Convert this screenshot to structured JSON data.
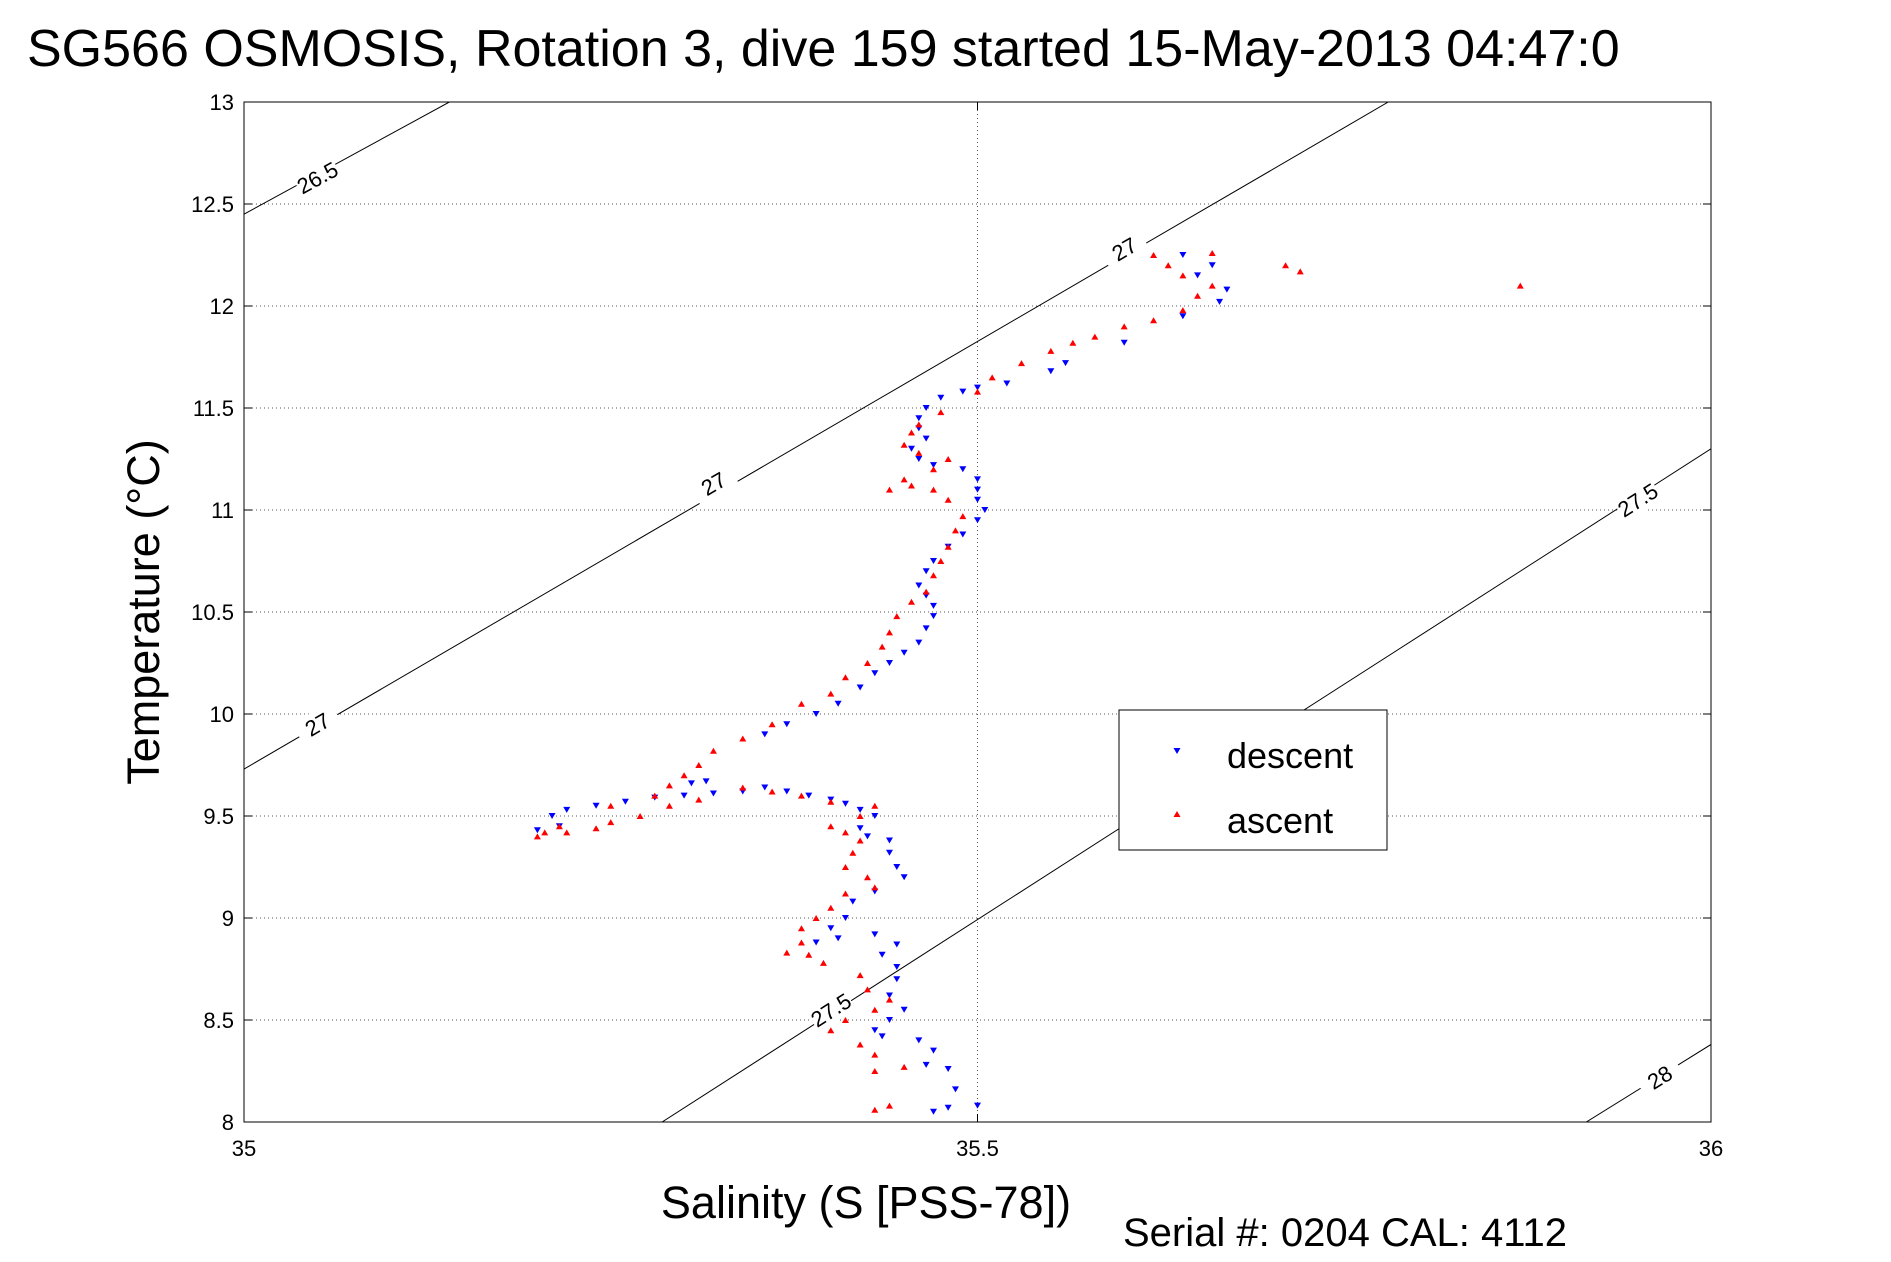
{
  "chart_data": {
    "type": "scatter",
    "title": "SG566 OSMOSIS, Rotation 3, dive 159 started 15-May-2013 04:47:0",
    "xlabel": "Salinity (S [PSS-78])",
    "ylabel": "Temperature (°C)",
    "xlim": [
      35,
      36
    ],
    "ylim": [
      8,
      13
    ],
    "x_ticks": [
      "35",
      "35.5",
      "36"
    ],
    "x_tick_values": [
      35,
      35.5,
      36
    ],
    "y_ticks": [
      "8",
      "8.5",
      "9",
      "9.5",
      "10",
      "10.5",
      "11",
      "11.5",
      "12",
      "12.5",
      "13"
    ],
    "y_tick_values": [
      8,
      8.5,
      9,
      9.5,
      10,
      10.5,
      11,
      11.5,
      12,
      12.5,
      13
    ],
    "grid": true,
    "legend_placement": "center-right",
    "footer": "Serial #: 0204  CAL: 4112",
    "density_contours": [
      {
        "label": "26.5",
        "points": [
          [
            35,
            12.45
          ],
          [
            35.14,
            13.0
          ]
        ],
        "label_positions": [
          [
            35.05,
            12.63
          ]
        ]
      },
      {
        "label": "27",
        "points": [
          [
            35,
            9.73
          ],
          [
            35.78,
            13.0
          ]
        ],
        "label_positions": [
          [
            35.05,
            9.95
          ],
          [
            35.32,
            11.13
          ],
          [
            35.6,
            12.28
          ]
        ]
      },
      {
        "label": "27.5",
        "points": [
          [
            35.285,
            8.0
          ],
          [
            36,
            11.3
          ]
        ],
        "label_positions": [
          [
            35.4,
            8.55
          ],
          [
            35.95,
            11.05
          ]
        ]
      },
      {
        "label": "28",
        "points": [
          [
            35.915,
            8.0
          ],
          [
            36,
            8.38
          ]
        ],
        "label_positions": [
          [
            35.965,
            8.22
          ]
        ]
      }
    ],
    "series": [
      {
        "name": "descent",
        "color": "#0000ff",
        "marker": "triangle-down",
        "values": [
          [
            35.47,
            8.05
          ],
          [
            35.48,
            8.07
          ],
          [
            35.5,
            8.08
          ],
          [
            35.485,
            8.16
          ],
          [
            35.48,
            8.26
          ],
          [
            35.465,
            8.28
          ],
          [
            35.47,
            8.35
          ],
          [
            35.46,
            8.4
          ],
          [
            35.435,
            8.42
          ],
          [
            35.43,
            8.45
          ],
          [
            35.44,
            8.5
          ],
          [
            35.45,
            8.55
          ],
          [
            35.44,
            8.62
          ],
          [
            35.445,
            8.7
          ],
          [
            35.445,
            8.76
          ],
          [
            35.435,
            8.82
          ],
          [
            35.445,
            8.87
          ],
          [
            35.43,
            8.92
          ],
          [
            35.405,
            8.9
          ],
          [
            35.39,
            8.88
          ],
          [
            35.4,
            8.95
          ],
          [
            35.41,
            9.0
          ],
          [
            35.415,
            9.08
          ],
          [
            35.43,
            9.13
          ],
          [
            35.45,
            9.2
          ],
          [
            35.445,
            9.25
          ],
          [
            35.44,
            9.32
          ],
          [
            35.44,
            9.38
          ],
          [
            35.425,
            9.4
          ],
          [
            35.42,
            9.44
          ],
          [
            35.43,
            9.5
          ],
          [
            35.42,
            9.53
          ],
          [
            35.41,
            9.56
          ],
          [
            35.4,
            9.58
          ],
          [
            35.385,
            9.6
          ],
          [
            35.37,
            9.62
          ],
          [
            35.355,
            9.64
          ],
          [
            35.34,
            9.62
          ],
          [
            35.32,
            9.61
          ],
          [
            35.3,
            9.6
          ],
          [
            35.28,
            9.59
          ],
          [
            35.26,
            9.57
          ],
          [
            35.24,
            9.55
          ],
          [
            35.22,
            9.53
          ],
          [
            35.21,
            9.5
          ],
          [
            35.215,
            9.45
          ],
          [
            35.2,
            9.43
          ],
          [
            35.315,
            9.67
          ],
          [
            35.305,
            9.66
          ],
          [
            35.355,
            9.9
          ],
          [
            35.37,
            9.95
          ],
          [
            35.39,
            10.0
          ],
          [
            35.405,
            10.05
          ],
          [
            35.42,
            10.13
          ],
          [
            35.43,
            10.2
          ],
          [
            35.44,
            10.25
          ],
          [
            35.45,
            10.3
          ],
          [
            35.46,
            10.35
          ],
          [
            35.465,
            10.42
          ],
          [
            35.47,
            10.48
          ],
          [
            35.47,
            10.53
          ],
          [
            35.465,
            10.58
          ],
          [
            35.46,
            10.63
          ],
          [
            35.465,
            10.7
          ],
          [
            35.47,
            10.75
          ],
          [
            35.48,
            10.82
          ],
          [
            35.49,
            10.88
          ],
          [
            35.5,
            10.95
          ],
          [
            35.505,
            11.0
          ],
          [
            35.5,
            11.05
          ],
          [
            35.5,
            11.1
          ],
          [
            35.5,
            11.15
          ],
          [
            35.49,
            11.2
          ],
          [
            35.47,
            11.22
          ],
          [
            35.46,
            11.25
          ],
          [
            35.455,
            11.3
          ],
          [
            35.465,
            11.35
          ],
          [
            35.46,
            11.4
          ],
          [
            35.46,
            11.45
          ],
          [
            35.465,
            11.5
          ],
          [
            35.475,
            11.55
          ],
          [
            35.49,
            11.58
          ],
          [
            35.5,
            11.6
          ],
          [
            35.52,
            11.62
          ],
          [
            35.55,
            11.68
          ],
          [
            35.56,
            11.72
          ],
          [
            35.6,
            11.82
          ],
          [
            35.64,
            11.95
          ],
          [
            35.665,
            12.02
          ],
          [
            35.67,
            12.08
          ],
          [
            35.65,
            12.15
          ],
          [
            35.66,
            12.2
          ],
          [
            35.64,
            12.25
          ]
        ]
      },
      {
        "name": "ascent",
        "color": "#ff0000",
        "marker": "triangle-up",
        "values": [
          [
            35.43,
            8.06
          ],
          [
            35.44,
            8.08
          ],
          [
            35.43,
            8.25
          ],
          [
            35.45,
            8.27
          ],
          [
            35.43,
            8.33
          ],
          [
            35.42,
            8.38
          ],
          [
            35.4,
            8.45
          ],
          [
            35.41,
            8.5
          ],
          [
            35.43,
            8.55
          ],
          [
            35.44,
            8.6
          ],
          [
            35.425,
            8.65
          ],
          [
            35.42,
            8.72
          ],
          [
            35.395,
            8.78
          ],
          [
            35.385,
            8.82
          ],
          [
            35.37,
            8.83
          ],
          [
            35.38,
            8.88
          ],
          [
            35.38,
            8.95
          ],
          [
            35.39,
            9.0
          ],
          [
            35.4,
            9.05
          ],
          [
            35.41,
            9.12
          ],
          [
            35.43,
            9.15
          ],
          [
            35.425,
            9.2
          ],
          [
            35.41,
            9.25
          ],
          [
            35.415,
            9.32
          ],
          [
            35.42,
            9.38
          ],
          [
            35.41,
            9.42
          ],
          [
            35.4,
            9.45
          ],
          [
            35.42,
            9.5
          ],
          [
            35.43,
            9.55
          ],
          [
            35.4,
            9.57
          ],
          [
            35.38,
            9.6
          ],
          [
            35.36,
            9.62
          ],
          [
            35.34,
            9.64
          ],
          [
            35.31,
            9.58
          ],
          [
            35.29,
            9.55
          ],
          [
            35.27,
            9.5
          ],
          [
            35.25,
            9.47
          ],
          [
            35.24,
            9.44
          ],
          [
            35.22,
            9.42
          ],
          [
            35.205,
            9.42
          ],
          [
            35.2,
            9.4
          ],
          [
            35.215,
            9.45
          ],
          [
            35.25,
            9.55
          ],
          [
            35.28,
            9.6
          ],
          [
            35.29,
            9.65
          ],
          [
            35.3,
            9.7
          ],
          [
            35.31,
            9.75
          ],
          [
            35.32,
            9.82
          ],
          [
            35.34,
            9.88
          ],
          [
            35.36,
            9.95
          ],
          [
            35.38,
            10.05
          ],
          [
            35.4,
            10.1
          ],
          [
            35.41,
            10.18
          ],
          [
            35.425,
            10.25
          ],
          [
            35.435,
            10.33
          ],
          [
            35.44,
            10.4
          ],
          [
            35.445,
            10.48
          ],
          [
            35.455,
            10.55
          ],
          [
            35.465,
            10.6
          ],
          [
            35.47,
            10.68
          ],
          [
            35.475,
            10.75
          ],
          [
            35.48,
            10.82
          ],
          [
            35.485,
            10.9
          ],
          [
            35.49,
            10.97
          ],
          [
            35.48,
            11.05
          ],
          [
            35.47,
            11.1
          ],
          [
            35.455,
            11.12
          ],
          [
            35.44,
            11.1
          ],
          [
            35.45,
            11.15
          ],
          [
            35.47,
            11.2
          ],
          [
            35.48,
            11.25
          ],
          [
            35.46,
            11.28
          ],
          [
            35.45,
            11.32
          ],
          [
            35.455,
            11.38
          ],
          [
            35.46,
            11.42
          ],
          [
            35.475,
            11.48
          ],
          [
            35.5,
            11.58
          ],
          [
            35.51,
            11.65
          ],
          [
            35.53,
            11.72
          ],
          [
            35.55,
            11.78
          ],
          [
            35.565,
            11.82
          ],
          [
            35.58,
            11.85
          ],
          [
            35.6,
            11.9
          ],
          [
            35.62,
            11.93
          ],
          [
            35.64,
            11.98
          ],
          [
            35.65,
            12.05
          ],
          [
            35.66,
            12.1
          ],
          [
            35.64,
            12.15
          ],
          [
            35.63,
            12.2
          ],
          [
            35.62,
            12.25
          ],
          [
            35.66,
            12.26
          ],
          [
            35.71,
            12.2
          ],
          [
            35.72,
            12.17
          ],
          [
            35.87,
            12.1
          ]
        ]
      }
    ]
  }
}
